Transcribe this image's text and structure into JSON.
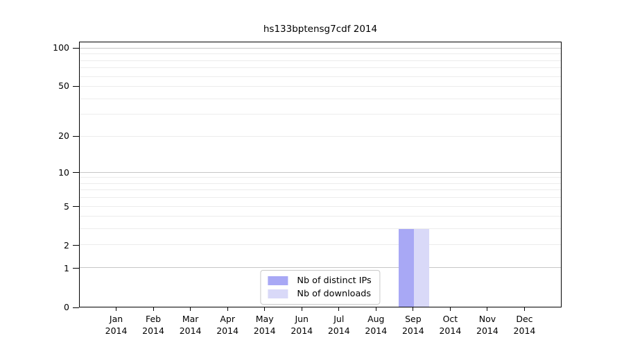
{
  "chart_data": {
    "type": "bar",
    "title": "hs133bptensg7cdf 2014",
    "categories": [
      {
        "month": "Jan",
        "year": "2014"
      },
      {
        "month": "Feb",
        "year": "2014"
      },
      {
        "month": "Mar",
        "year": "2014"
      },
      {
        "month": "Apr",
        "year": "2014"
      },
      {
        "month": "May",
        "year": "2014"
      },
      {
        "month": "Jun",
        "year": "2014"
      },
      {
        "month": "Jul",
        "year": "2014"
      },
      {
        "month": "Aug",
        "year": "2014"
      },
      {
        "month": "Sep",
        "year": "2014"
      },
      {
        "month": "Oct",
        "year": "2014"
      },
      {
        "month": "Nov",
        "year": "2014"
      },
      {
        "month": "Dec",
        "year": "2014"
      }
    ],
    "series": [
      {
        "name": "Nb of distinct IPs",
        "color": "#a8a8f5",
        "values": [
          0,
          0,
          0,
          0,
          0,
          0,
          0,
          0,
          3,
          0,
          0,
          0
        ]
      },
      {
        "name": "Nb of downloads",
        "color": "#d9d9f8",
        "values": [
          0,
          0,
          0,
          0,
          0,
          0,
          0,
          0,
          3,
          0,
          0,
          0
        ]
      }
    ],
    "y_axis": {
      "scale": "log1p",
      "ticks": [
        0,
        1,
        2,
        5,
        10,
        20,
        50,
        100
      ],
      "max": 112,
      "major_gridlines": [
        1,
        10,
        100
      ],
      "minor_gridlines": [
        2,
        3,
        4,
        5,
        6,
        7,
        8,
        9,
        20,
        30,
        40,
        50,
        60,
        70,
        80,
        90
      ]
    },
    "xlabel": "",
    "ylabel": "",
    "legend_position": "lower center",
    "grid": true
  },
  "colors": {
    "background": "#ffffff",
    "spine": "#000000",
    "major_grid": "#c6c6c6",
    "minor_grid": "#ececec",
    "legend_border": "#c9c9c9"
  }
}
